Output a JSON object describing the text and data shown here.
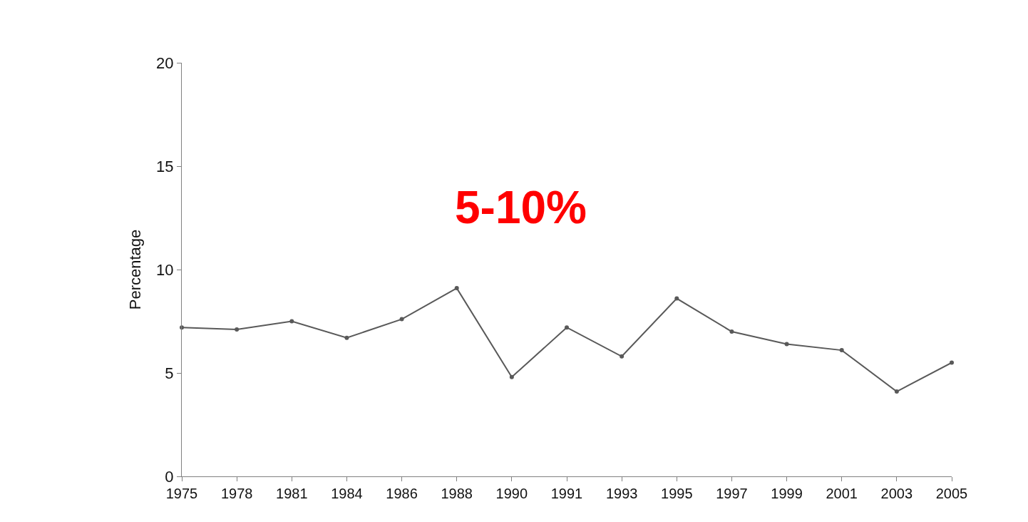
{
  "chart_data": {
    "type": "line",
    "ylabel": "Percentage",
    "categories": [
      "1975",
      "1978",
      "1981",
      "1984",
      "1986",
      "1988",
      "1990",
      "1991",
      "1993",
      "1995",
      "1997",
      "1999",
      "2001",
      "2003",
      "2005"
    ],
    "series": [
      {
        "color": "#595959",
        "values": [
          7.2,
          7.1,
          7.5,
          6.7,
          7.6,
          9.1,
          4.8,
          7.2,
          5.8,
          8.6,
          7.0,
          6.4,
          6.1,
          4.1,
          5.5
        ]
      }
    ],
    "ylim": [
      0,
      20
    ],
    "yticks": [
      0,
      5,
      10,
      15,
      20
    ],
    "marker": "circle",
    "line_style": "solid",
    "annotations": [
      "5-10%"
    ]
  }
}
